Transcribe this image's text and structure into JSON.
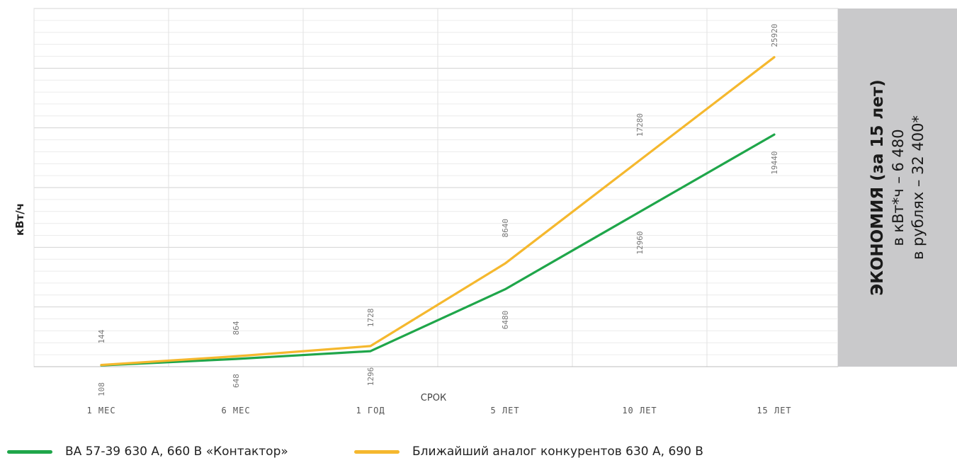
{
  "chart_data": {
    "type": "line",
    "categories": [
      "1 МЕС",
      "6 МЕС",
      "1 ГОД",
      "5 ЛЕТ",
      "10 ЛЕТ",
      "15 ЛЕТ"
    ],
    "series": [
      {
        "name": "ВА 57-39 630 А, 660 В «Контактор»",
        "color": "#1fa64a",
        "values": [
          108,
          648,
          1296,
          6480,
          12960,
          19440
        ],
        "labels": [
          "108",
          "648",
          "1296",
          "6480",
          "12960",
          "19440"
        ]
      },
      {
        "name": "Ближайший аналог конкурентов 630 А, 690 В",
        "color": "#f5b82e",
        "values": [
          144,
          864,
          1728,
          8640,
          17280,
          25920
        ],
        "labels": [
          "144",
          "864",
          "1728",
          "8640",
          "17280",
          "25920"
        ]
      }
    ],
    "xlabel": "СРОК",
    "ylabel": "кВт/ч",
    "ylim": [
      0,
      30000
    ],
    "grid": true,
    "legend_position": "bottom"
  },
  "sidebar": {
    "title": "ЭКОНОМИЯ (за 15 лет)",
    "line1": "в кВт*ч – 6 480",
    "line2": "в рублях – 32 400*"
  }
}
